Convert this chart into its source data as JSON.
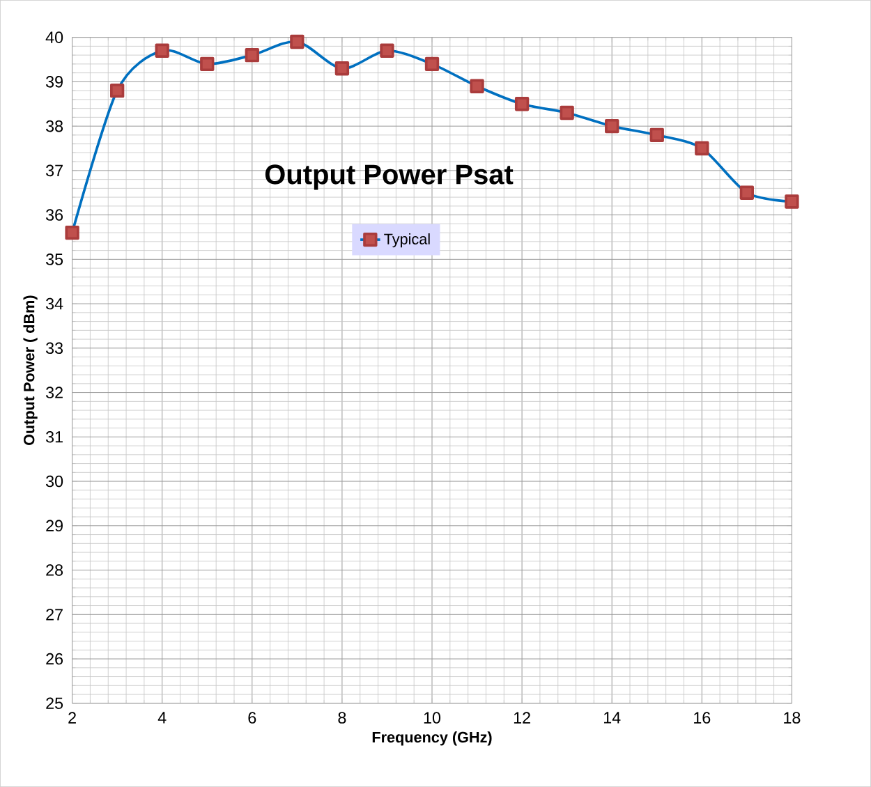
{
  "chart_data": {
    "type": "line",
    "title": "Output Power Psat",
    "xlabel": "Frequency (GHz)",
    "ylabel": "Output Power ( dBm)",
    "x": [
      2,
      3,
      4,
      5,
      6,
      7,
      8,
      9,
      10,
      11,
      12,
      13,
      14,
      15,
      16,
      17,
      18
    ],
    "series": [
      {
        "name": "Typical",
        "color": "#0070c0",
        "values": [
          35.6,
          38.8,
          39.7,
          39.4,
          39.6,
          39.9,
          39.3,
          39.7,
          39.4,
          38.9,
          38.5,
          38.3,
          38.0,
          37.8,
          37.5,
          36.5,
          36.3
        ]
      }
    ],
    "xlim": [
      2,
      18
    ],
    "xticks": [
      2,
      4,
      6,
      8,
      10,
      12,
      14,
      16,
      18
    ],
    "ylim": [
      25,
      40
    ],
    "yticks": [
      25,
      26,
      27,
      28,
      29,
      30,
      31,
      32,
      33,
      34,
      35,
      36,
      37,
      38,
      39,
      40
    ],
    "grid": true,
    "legend": "top",
    "marker": "square",
    "line_style": "solid"
  }
}
